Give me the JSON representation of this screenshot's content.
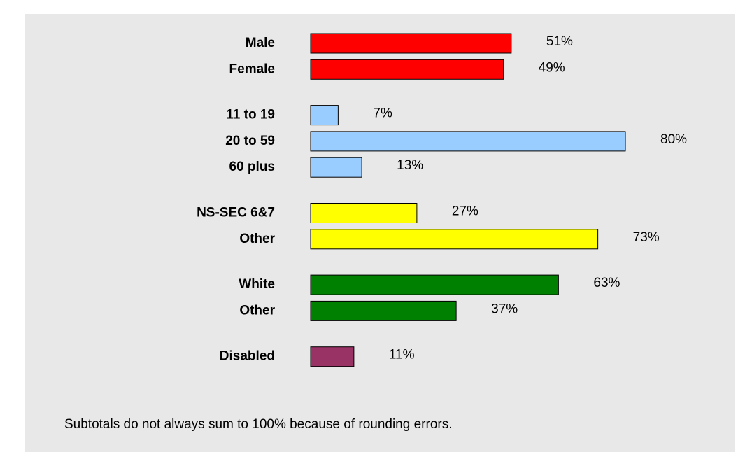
{
  "chart_data": {
    "type": "bar",
    "orientation": "horizontal",
    "xlim": [
      0,
      100
    ],
    "groups": [
      {
        "color": "#ff0000",
        "categories": [
          "Male",
          "Female"
        ],
        "values": [
          51,
          49
        ],
        "value_labels": [
          "51%",
          "49%"
        ]
      },
      {
        "color": "#99ccff",
        "categories": [
          "11 to 19",
          "20 to 59",
          "60 plus"
        ],
        "values": [
          7,
          80,
          13
        ],
        "value_labels": [
          "7%",
          "80%",
          "13%"
        ]
      },
      {
        "color": "#ffff00",
        "categories": [
          "NS-SEC 6&7",
          "Other"
        ],
        "values": [
          27,
          73
        ],
        "value_labels": [
          "27%",
          "73%"
        ]
      },
      {
        "color": "#008000",
        "categories": [
          "White",
          "Other"
        ],
        "values": [
          63,
          37
        ],
        "value_labels": [
          "63%",
          "37%"
        ]
      },
      {
        "color": "#993366",
        "categories": [
          "Disabled"
        ],
        "values": [
          11
        ],
        "value_labels": [
          "11%"
        ]
      }
    ],
    "footnote": "Subtotals do not always sum to 100% because of rounding errors."
  }
}
